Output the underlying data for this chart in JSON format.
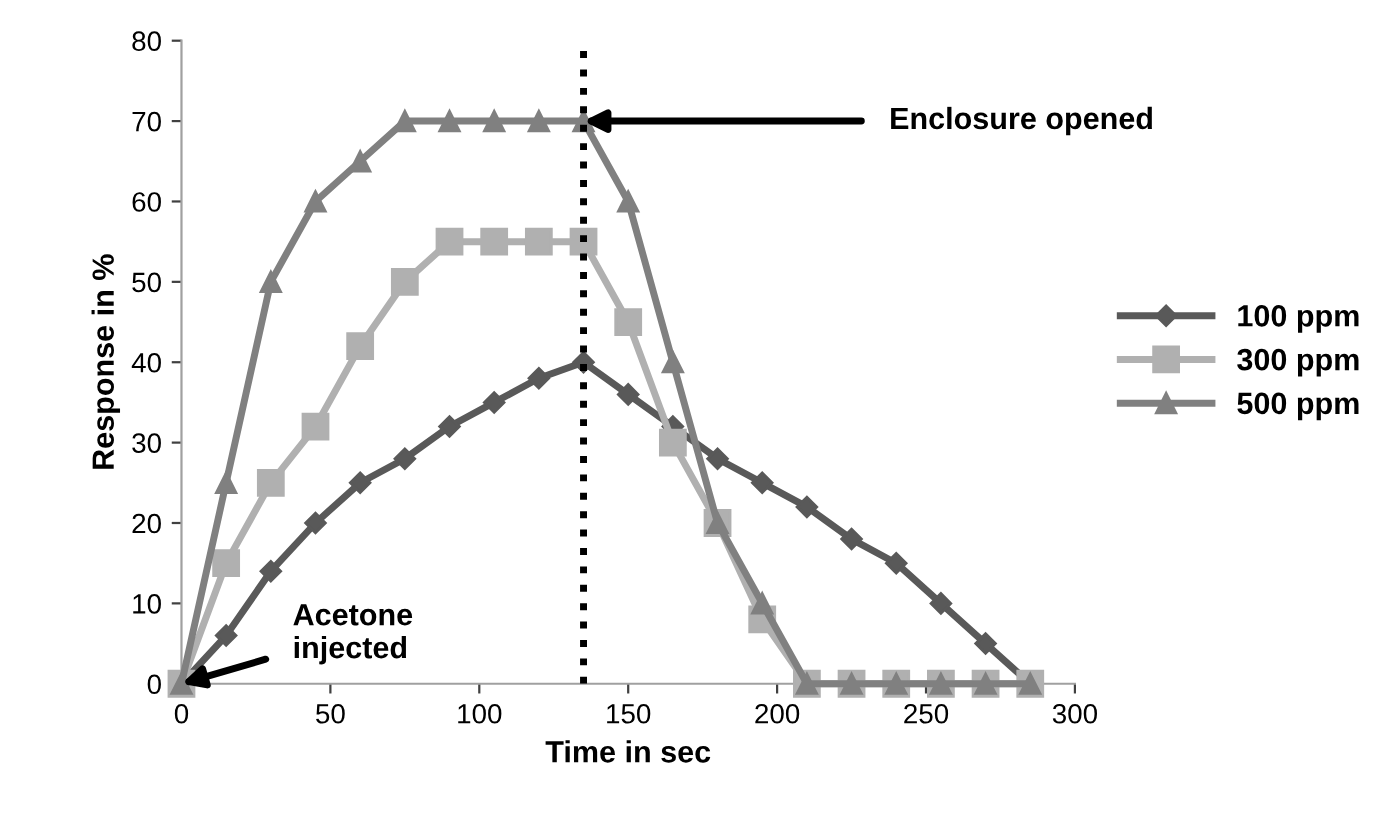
{
  "chart_data": {
    "type": "line",
    "xlabel": "Time in sec",
    "ylabel": "Response in %",
    "x": [
      0,
      15,
      30,
      45,
      60,
      75,
      90,
      105,
      120,
      135,
      150,
      165,
      180,
      195,
      210,
      225,
      240,
      255,
      270,
      285
    ],
    "series": [
      {
        "name": "100 ppm",
        "color": "#595959",
        "marker": "diamond",
        "values": [
          0,
          6,
          14,
          20,
          25,
          28,
          32,
          35,
          38,
          40,
          36,
          32,
          28,
          25,
          22,
          18,
          15,
          10,
          5,
          0
        ]
      },
      {
        "name": "300 ppm",
        "color": "#b0b0b0",
        "marker": "square",
        "values": [
          0,
          15,
          25,
          32,
          42,
          50,
          55,
          55,
          55,
          55,
          45,
          30,
          20,
          8,
          0,
          0,
          0,
          0,
          0,
          0
        ]
      },
      {
        "name": "500 ppm",
        "color": "#808080",
        "marker": "triangle",
        "values": [
          0,
          25,
          50,
          60,
          65,
          70,
          70,
          70,
          70,
          70,
          60,
          40,
          20,
          10,
          0,
          0,
          0,
          0,
          0,
          0
        ]
      }
    ],
    "xlim": [
      0,
      300
    ],
    "xticks": [
      0,
      50,
      100,
      150,
      200,
      250,
      300
    ],
    "ylim": [
      0,
      80
    ],
    "yticks": [
      0,
      10,
      20,
      30,
      40,
      50,
      60,
      70,
      80
    ],
    "ref_lines": [
      {
        "axis": "x",
        "value": 135,
        "color": "#000000",
        "line_style": "dotted"
      }
    ],
    "annotations": [
      {
        "text": "Enclosure opened",
        "x": 135,
        "y": 70
      },
      {
        "text": "Acetone\ninjected",
        "x": 0,
        "y": 0
      }
    ],
    "grid": false,
    "legend": "right"
  }
}
